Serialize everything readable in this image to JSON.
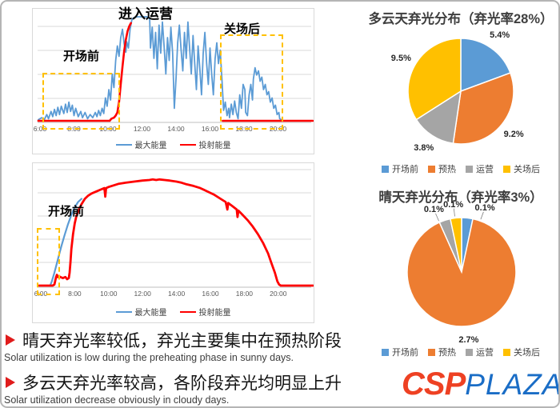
{
  "colors": {
    "blue": "#5B9BD5",
    "orange": "#ED7D31",
    "gray": "#A5A5A5",
    "yellow": "#FFC000",
    "red": "#FF0000",
    "grid": "#D9D9D9",
    "axis": "#BFBFBF",
    "dash_box": "#FFC000",
    "logo_csp": "#ee4123",
    "logo_plaza": "#1a6dc6"
  },
  "chart_data": [
    {
      "type": "line",
      "id": "cloudy_day_curve",
      "annotations": [
        {
          "text": "进入运营"
        },
        {
          "text": "开场前"
        },
        {
          "text": "关场后"
        }
      ],
      "x_ticks": [
        "6:00",
        "8:00",
        "10:00",
        "12:00",
        "14:00",
        "16:00",
        "18:00",
        "20:00"
      ],
      "x_range_hours": [
        6,
        22
      ],
      "ylim": [
        0,
        100
      ],
      "grid": "horizontal",
      "legend_position": "bottom",
      "series": [
        {
          "name": "最大能量",
          "color": "blue",
          "width": 1.8,
          "points": [
            [
              5.9,
              1
            ],
            [
              6.1,
              3
            ],
            [
              6.25,
              1
            ],
            [
              6.4,
              6
            ],
            [
              6.5,
              2
            ],
            [
              6.65,
              9
            ],
            [
              6.75,
              4
            ],
            [
              6.85,
              11
            ],
            [
              6.95,
              5
            ],
            [
              7.05,
              13
            ],
            [
              7.15,
              6
            ],
            [
              7.25,
              14
            ],
            [
              7.4,
              7
            ],
            [
              7.5,
              16
            ],
            [
              7.6,
              8
            ],
            [
              7.7,
              18
            ],
            [
              7.8,
              9
            ],
            [
              7.9,
              15
            ],
            [
              8.0,
              5
            ],
            [
              8.1,
              12
            ],
            [
              8.25,
              4
            ],
            [
              8.4,
              9
            ],
            [
              8.5,
              3
            ],
            [
              8.65,
              8
            ],
            [
              8.8,
              2
            ],
            [
              8.95,
              6
            ],
            [
              9.1,
              3
            ],
            [
              9.25,
              8
            ],
            [
              9.35,
              4
            ],
            [
              9.45,
              10
            ],
            [
              9.55,
              5
            ],
            [
              9.65,
              12
            ],
            [
              9.75,
              7
            ],
            [
              9.85,
              22
            ],
            [
              9.95,
              14
            ],
            [
              10.05,
              30
            ],
            [
              10.15,
              20
            ],
            [
              10.25,
              45
            ],
            [
              10.35,
              32
            ],
            [
              10.45,
              58
            ],
            [
              10.55,
              72
            ],
            [
              10.65,
              62
            ],
            [
              10.75,
              80
            ],
            [
              10.85,
              88
            ],
            [
              10.95,
              74
            ],
            [
              11.05,
              66
            ],
            [
              11.1,
              76
            ],
            [
              11.2,
              70
            ],
            [
              11.3,
              88
            ],
            [
              11.4,
              97
            ],
            [
              11.5,
              99
            ],
            [
              11.7,
              100
            ],
            [
              12.0,
              100
            ],
            [
              12.3,
              100
            ],
            [
              12.45,
              98
            ],
            [
              12.5,
              70
            ],
            [
              12.6,
              90
            ],
            [
              12.7,
              60
            ],
            [
              12.8,
              85
            ],
            [
              12.9,
              50
            ],
            [
              13.0,
              92
            ],
            [
              13.1,
              65
            ],
            [
              13.2,
              95
            ],
            [
              13.3,
              72
            ],
            [
              13.4,
              45
            ],
            [
              13.5,
              80
            ],
            [
              13.6,
              58
            ],
            [
              13.7,
              90
            ],
            [
              13.8,
              65
            ],
            [
              13.9,
              12
            ],
            [
              14.0,
              40
            ],
            [
              14.1,
              75
            ],
            [
              14.2,
              92
            ],
            [
              14.3,
              68
            ],
            [
              14.4,
              48
            ],
            [
              14.5,
              85
            ],
            [
              14.6,
              60
            ],
            [
              14.7,
              95
            ],
            [
              14.8,
              70
            ],
            [
              14.9,
              45
            ],
            [
              15.0,
              82
            ],
            [
              15.1,
              55
            ],
            [
              15.2,
              30
            ],
            [
              15.3,
              72
            ],
            [
              15.4,
              50
            ],
            [
              15.5,
              25
            ],
            [
              15.6,
              65
            ],
            [
              15.7,
              85
            ],
            [
              15.8,
              55
            ],
            [
              15.9,
              35
            ],
            [
              16.0,
              70
            ],
            [
              16.1,
              45
            ],
            [
              16.2,
              25
            ],
            [
              16.3,
              60
            ],
            [
              16.4,
              75
            ],
            [
              16.5,
              55
            ],
            [
              16.6,
              68
            ],
            [
              16.7,
              40
            ],
            [
              16.8,
              10
            ],
            [
              16.9,
              18
            ],
            [
              17.0,
              5
            ],
            [
              17.1,
              12
            ],
            [
              17.15,
              3
            ],
            [
              17.25,
              16
            ],
            [
              17.35,
              6
            ],
            [
              17.45,
              19
            ],
            [
              17.55,
              8
            ],
            [
              17.65,
              2
            ],
            [
              17.75,
              25
            ],
            [
              17.85,
              12
            ],
            [
              17.95,
              35
            ],
            [
              18.05,
              30
            ],
            [
              18.1,
              8
            ],
            [
              18.2,
              5
            ],
            [
              18.3,
              25
            ],
            [
              18.4,
              35
            ],
            [
              18.5,
              20
            ],
            [
              18.55,
              40
            ],
            [
              18.65,
              51
            ],
            [
              18.75,
              44
            ],
            [
              18.85,
              48
            ],
            [
              18.95,
              38
            ],
            [
              19.05,
              42
            ],
            [
              19.15,
              30
            ],
            [
              19.25,
              35
            ],
            [
              19.35,
              25
            ],
            [
              19.45,
              28
            ],
            [
              19.55,
              18
            ],
            [
              19.65,
              22
            ],
            [
              19.75,
              12
            ],
            [
              19.85,
              15
            ],
            [
              19.95,
              6
            ],
            [
              20.05,
              8
            ],
            [
              20.1,
              2
            ],
            [
              20.2,
              1
            ]
          ]
        },
        {
          "name": "投射能量",
          "color": "red",
          "width": 2.6,
          "points": [
            [
              5.9,
              0
            ],
            [
              10.1,
              0
            ],
            [
              10.2,
              2
            ],
            [
              10.35,
              3
            ],
            [
              10.45,
              5
            ],
            [
              10.55,
              8
            ],
            [
              10.65,
              18
            ],
            [
              10.75,
              35
            ],
            [
              10.85,
              52
            ],
            [
              10.95,
              67
            ],
            [
              11.05,
              78
            ],
            [
              11.15,
              86
            ],
            [
              11.25,
              91
            ],
            [
              11.35,
              94
            ]
          ]
        },
        {
          "name": "投射能量",
          "color": "red",
          "width": 2.6,
          "legend_skip": true,
          "points": [
            [
              16.75,
              0
            ],
            [
              22.05,
              0
            ]
          ]
        }
      ],
      "legend": [
        {
          "label": "最大能量",
          "color": "blue"
        },
        {
          "label": "投射能量",
          "color": "red"
        }
      ]
    },
    {
      "type": "line",
      "id": "sunny_day_curve",
      "annotations": [
        {
          "text": "开场前"
        }
      ],
      "x_ticks": [
        "6:00",
        "8:00",
        "10:00",
        "12:00",
        "14:00",
        "16:00",
        "18:00",
        "20:00"
      ],
      "x_range_hours": [
        6,
        22
      ],
      "ylim": [
        0,
        100
      ],
      "grid": "horizontal",
      "legend_position": "bottom",
      "series": [
        {
          "name": "最大能量",
          "color": "blue",
          "width": 2.2,
          "points": [
            [
              6.55,
              0
            ],
            [
              6.65,
              4
            ],
            [
              6.8,
              12
            ],
            [
              7.0,
              24
            ],
            [
              7.2,
              36
            ],
            [
              7.4,
              47
            ],
            [
              7.6,
              57
            ],
            [
              7.8,
              66
            ],
            [
              8.0,
              73
            ],
            [
              8.2,
              78
            ],
            [
              8.4,
              81
            ]
          ]
        },
        {
          "name": "投射能量",
          "color": "red",
          "width": 2.8,
          "points": [
            [
              5.9,
              0
            ],
            [
              6.7,
              0
            ],
            [
              6.8,
              1
            ],
            [
              6.9,
              8
            ],
            [
              6.95,
              10
            ],
            [
              7.0,
              8
            ],
            [
              7.05,
              9
            ],
            [
              7.15,
              8
            ],
            [
              7.3,
              7
            ],
            [
              7.45,
              8
            ],
            [
              7.55,
              6
            ],
            [
              7.65,
              7
            ],
            [
              7.7,
              12
            ],
            [
              7.75,
              22
            ],
            [
              7.8,
              34
            ],
            [
              7.9,
              48
            ],
            [
              8.0,
              58
            ],
            [
              8.1,
              65
            ],
            [
              8.25,
              71
            ],
            [
              8.4,
              76
            ],
            [
              8.6,
              81
            ],
            [
              8.8,
              84
            ],
            [
              9.0,
              86
            ],
            [
              9.3,
              88
            ],
            [
              9.6,
              90
            ],
            [
              9.75,
              91
            ],
            [
              9.8,
              83
            ],
            [
              9.85,
              91
            ],
            [
              10.0,
              92
            ],
            [
              10.3,
              93.5
            ],
            [
              10.6,
              95
            ],
            [
              11.0,
              96
            ],
            [
              11.5,
              97
            ],
            [
              12.0,
              98
            ],
            [
              12.4,
              98.5
            ],
            [
              12.6,
              99
            ],
            [
              12.8,
              98.5
            ],
            [
              13.0,
              99
            ],
            [
              13.3,
              98.5
            ],
            [
              13.6,
              98
            ],
            [
              14.0,
              97
            ],
            [
              14.3,
              96
            ],
            [
              14.6,
              94.5
            ],
            [
              15.0,
              93
            ],
            [
              15.4,
              91
            ],
            [
              15.8,
              88
            ],
            [
              16.2,
              85
            ],
            [
              16.6,
              81
            ],
            [
              16.9,
              78
            ],
            [
              17.0,
              71
            ],
            [
              17.05,
              77
            ],
            [
              17.3,
              74
            ],
            [
              17.55,
              71
            ],
            [
              17.6,
              64
            ],
            [
              17.65,
              70
            ],
            [
              17.9,
              66
            ],
            [
              18.2,
              61
            ],
            [
              18.5,
              55
            ],
            [
              18.8,
              48
            ],
            [
              19.1,
              40
            ],
            [
              19.4,
              30
            ],
            [
              19.6,
              21
            ],
            [
              19.8,
              12
            ],
            [
              19.95,
              4
            ],
            [
              20.05,
              1
            ],
            [
              20.15,
              0
            ],
            [
              22.05,
              0
            ]
          ]
        }
      ],
      "legend": [
        {
          "label": "最大能量",
          "color": "blue"
        },
        {
          "label": "投射能量",
          "color": "red"
        }
      ]
    },
    {
      "type": "pie",
      "id": "cloudy_day_pie",
      "title": "多云天弃光分布（弃光率28%）",
      "categories": [
        "开场前",
        "预热",
        "运营",
        "关场后"
      ],
      "values": [
        5.4,
        9.2,
        3.8,
        9.5
      ],
      "value_labels": [
        "5.4%",
        "9.2%",
        "3.8%",
        "9.5%"
      ],
      "slice_colors": [
        "blue",
        "orange",
        "gray",
        "yellow"
      ],
      "legend_position": "bottom",
      "label_angles": null
    },
    {
      "type": "pie",
      "id": "sunny_day_pie",
      "title": "晴天弃光分布（弃光率3%）",
      "categories": [
        "开场前",
        "预热",
        "运营",
        "关场后"
      ],
      "values": [
        0.1,
        2.7,
        0.1,
        0.1
      ],
      "value_labels": [
        "0.1%",
        "2.7%",
        "0.1%",
        "0.1%"
      ],
      "slice_colors": [
        "blue",
        "orange",
        "gray",
        "yellow"
      ],
      "legend_position": "bottom",
      "label_angles": [
        20,
        174,
        336,
        353
      ]
    }
  ],
  "bullets": [
    {
      "cn": "晴天弃光率较低，弃光主要集中在预热阶段",
      "en": "Solar utilization is low during the preheating phase in sunny days."
    },
    {
      "cn": "多云天弃光率较高，各阶段弃光均明显上升",
      "en": "Solar utilization decrease obviously in cloudy days."
    }
  ],
  "logo": {
    "csp": "CSP",
    "plaza": "PLAZA"
  }
}
